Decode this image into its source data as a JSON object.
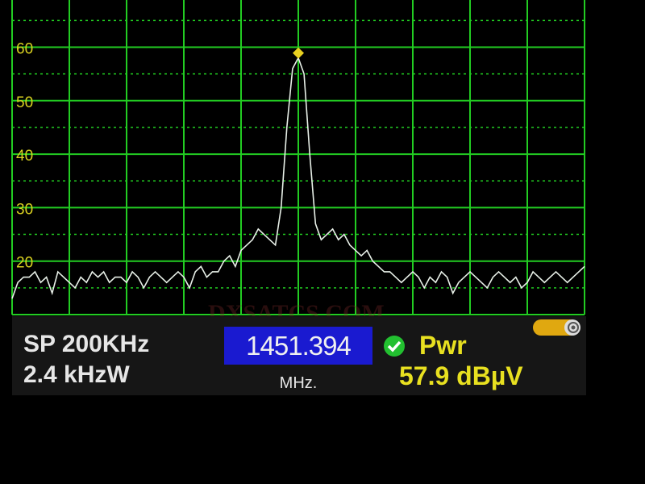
{
  "chart_data": {
    "type": "line",
    "title": "",
    "xlabel": "",
    "ylabel": "",
    "ylim": [
      10,
      70
    ],
    "yticks": [
      "20",
      "30",
      "40",
      "50",
      "60",
      "70"
    ],
    "grid": true,
    "x_divisions": 10,
    "values": [
      13,
      16,
      17,
      17,
      18,
      16,
      17,
      14,
      18,
      17,
      16,
      15,
      17,
      16,
      18,
      17,
      18,
      16,
      17,
      17,
      16,
      18,
      17,
      15,
      17,
      18,
      17,
      16,
      17,
      18,
      17,
      15,
      18,
      19,
      17,
      18,
      18,
      20,
      21,
      19,
      22,
      23,
      24,
      26,
      25,
      24,
      23,
      30,
      45,
      56,
      58,
      55,
      40,
      27,
      24,
      25,
      26,
      24,
      25,
      23,
      22,
      21,
      22,
      20,
      19,
      18,
      18,
      17,
      16,
      17,
      18,
      17,
      15,
      17,
      16,
      18,
      17,
      14,
      16,
      17,
      18,
      17,
      16,
      15,
      17,
      18,
      17,
      16,
      17,
      15,
      16,
      18,
      17,
      16,
      17,
      18,
      17,
      16,
      17,
      18,
      19
    ],
    "peak_marker_index": 50,
    "colors": {
      "grid": "#22cc22",
      "trace": "#e8f0e8",
      "marker": "#e8d020",
      "tick_label": "#d8d020"
    }
  },
  "status": {
    "span": "SP 200KHz",
    "rbw": "2.4 kHzW",
    "frequency": "1451.394",
    "frequency_unit": "MHz.",
    "lock_icon": "check-circle-icon",
    "measure_label": "Pwr",
    "measure_value": "57.9 dBµV",
    "battery_icon": "battery-icon"
  },
  "watermark": "DXSATCS.COM"
}
